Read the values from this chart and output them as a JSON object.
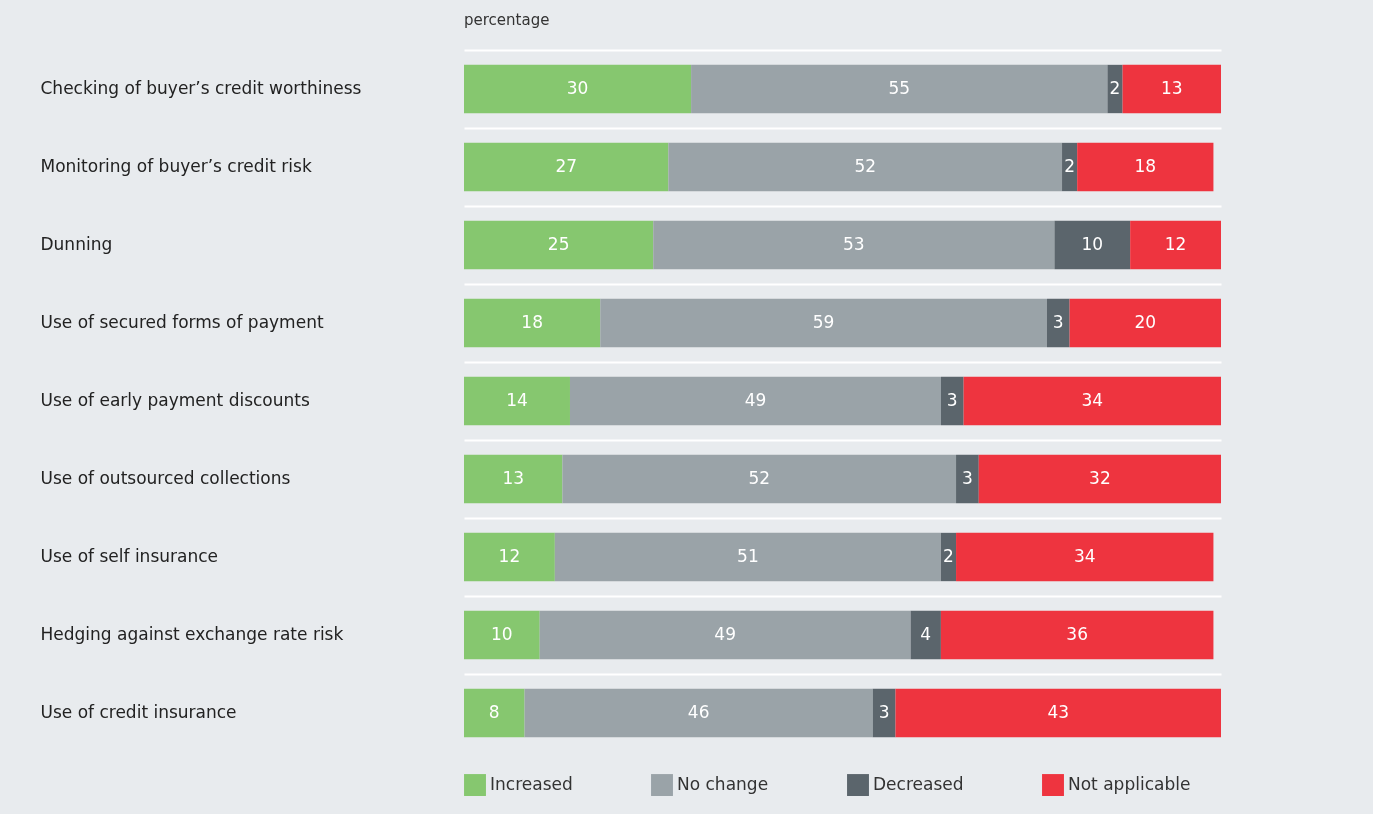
{
  "chart_data": {
    "type": "bar",
    "orientation": "horizontal",
    "stacked": true,
    "title": "percentage",
    "categories": [
      "Checking of buyer’s credit worthiness",
      "Monitoring of buyer’s credit risk",
      "Dunning",
      "Use of secured forms of payment",
      "Use of early payment discounts",
      "Use of outsourced collections",
      "Use of self insurance",
      "Hedging against exchange rate risk",
      "Use of credit insurance"
    ],
    "series": [
      {
        "name": "Increased",
        "color": "#86c76f",
        "values": [
          30,
          27,
          25,
          18,
          14,
          13,
          12,
          10,
          8
        ]
      },
      {
        "name": "No change",
        "color": "#9aa3a8",
        "values": [
          55,
          52,
          53,
          59,
          49,
          52,
          51,
          49,
          46
        ]
      },
      {
        "name": "Decreased",
        "color": "#5b656c",
        "values": [
          2,
          2,
          10,
          3,
          3,
          3,
          2,
          4,
          3
        ]
      },
      {
        "name": "Not applicable",
        "color": "#ee343f",
        "values": [
          13,
          18,
          12,
          20,
          34,
          32,
          34,
          36,
          43
        ]
      }
    ],
    "data_labels": true,
    "legend": "bottom",
    "grid": "y",
    "tick_labels": "y"
  }
}
